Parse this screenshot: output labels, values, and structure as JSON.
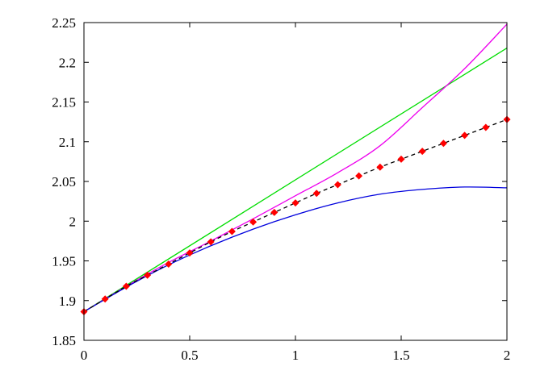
{
  "chart_data": {
    "type": "line",
    "title": "",
    "xlabel": "",
    "ylabel": "",
    "xlim": [
      0,
      2
    ],
    "ylim": [
      1.85,
      2.25
    ],
    "x_ticks": [
      "0",
      "0.5",
      "1",
      "1.5",
      "2"
    ],
    "y_ticks": [
      "1.85",
      "1.9",
      "1.95",
      "2",
      "2.05",
      "2.1",
      "2.15",
      "2.2",
      "2.25"
    ],
    "grid": false,
    "legend": "none",
    "series": [
      {
        "color": "#00dd00",
        "style": "solid",
        "x": [
          0,
          2
        ],
        "y": [
          1.886,
          2.218
        ]
      },
      {
        "color": "#ee00ee",
        "style": "solid",
        "x": [
          0,
          0.2,
          0.4,
          0.6,
          0.8,
          1.0,
          1.2,
          1.4,
          1.6,
          1.8,
          2.0
        ],
        "y": [
          1.886,
          1.918,
          1.948,
          1.975,
          2.003,
          2.032,
          2.061,
          2.095,
          2.143,
          2.192,
          2.248
        ]
      },
      {
        "color": "#0000dd",
        "style": "solid",
        "x": [
          0,
          0.2,
          0.4,
          0.6,
          0.8,
          1.0,
          1.2,
          1.4,
          1.6,
          1.8,
          2.0
        ],
        "y": [
          1.886,
          1.917,
          1.945,
          1.969,
          1.99,
          2.008,
          2.023,
          2.034,
          2.04,
          2.043,
          2.042
        ]
      },
      {
        "color": "#000000",
        "style": "dashed",
        "markers": "diamond",
        "marker_color": "#ff0000",
        "x": [
          0,
          0.1,
          0.2,
          0.3,
          0.4,
          0.5,
          0.6,
          0.7,
          0.8,
          0.9,
          1.0,
          1.1,
          1.2,
          1.3,
          1.4,
          1.5,
          1.6,
          1.7,
          1.8,
          1.9,
          2.0
        ],
        "y": [
          1.886,
          1.902,
          1.918,
          1.932,
          1.946,
          1.96,
          1.974,
          1.987,
          1.999,
          2.011,
          2.023,
          2.035,
          2.046,
          2.057,
          2.068,
          2.078,
          2.088,
          2.098,
          2.108,
          2.118,
          2.128
        ]
      }
    ]
  }
}
